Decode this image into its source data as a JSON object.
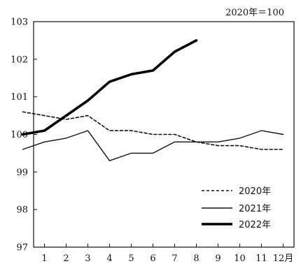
{
  "chart_data": {
    "type": "line",
    "title": "",
    "unit_note": "2020年＝100",
    "xlabel": "",
    "ylabel": "",
    "x_categories": [
      "1",
      "2",
      "3",
      "4",
      "5",
      "6",
      "7",
      "8",
      "9",
      "10",
      "11",
      "12月"
    ],
    "y_ticks": [
      "103",
      "102",
      "101",
      "100",
      "99",
      "98",
      "97"
    ],
    "xlim": [
      0.5,
      12.5
    ],
    "ylim": [
      97,
      103
    ],
    "grid": false,
    "legend_position": "bottom-right",
    "series": [
      {
        "name": "2020年",
        "style": "dashed",
        "color": "#111111",
        "x": [
          0,
          1,
          2,
          3,
          4,
          5,
          6,
          7,
          8,
          9,
          10,
          11,
          12
        ],
        "values": [
          100.6,
          100.5,
          100.4,
          100.5,
          100.1,
          100.1,
          100.0,
          100.0,
          99.8,
          99.7,
          99.7,
          99.6,
          99.6
        ]
      },
      {
        "name": "2021年",
        "style": "thin",
        "color": "#111111",
        "x": [
          0,
          1,
          2,
          3,
          4,
          5,
          6,
          7,
          8,
          9,
          10,
          11,
          12
        ],
        "values": [
          99.6,
          99.8,
          99.9,
          100.1,
          99.3,
          99.5,
          99.5,
          99.8,
          99.8,
          99.8,
          99.9,
          100.1,
          100.0
        ]
      },
      {
        "name": "2022年",
        "style": "thick",
        "color": "#000000",
        "x": [
          0,
          1,
          2,
          3,
          4,
          5,
          6,
          7,
          8
        ],
        "values": [
          100.0,
          100.1,
          100.5,
          100.9,
          101.4,
          101.6,
          101.7,
          102.2,
          102.5
        ]
      }
    ]
  }
}
